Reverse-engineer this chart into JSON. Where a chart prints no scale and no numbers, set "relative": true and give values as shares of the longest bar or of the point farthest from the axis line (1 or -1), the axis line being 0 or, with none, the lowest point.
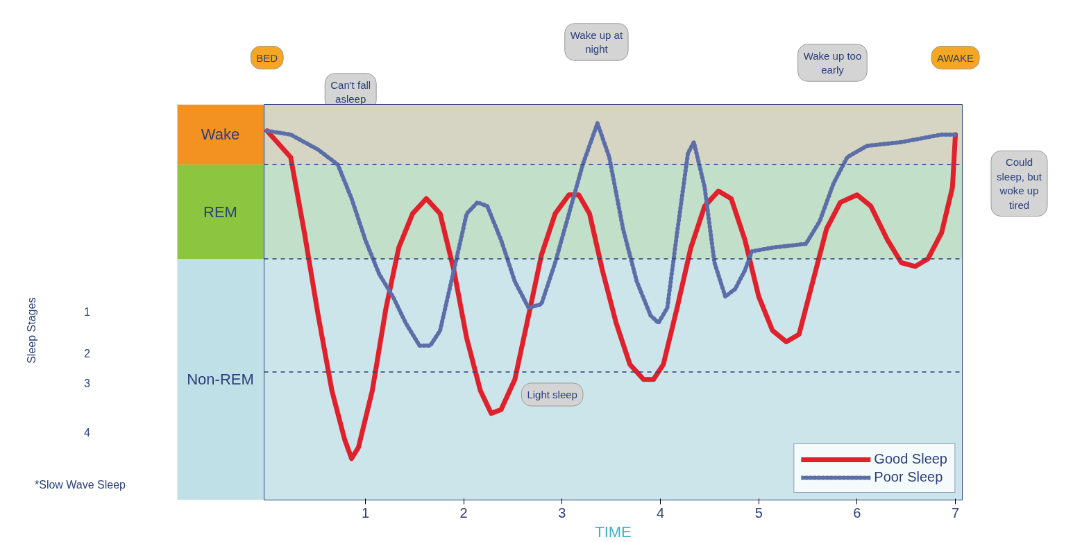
{
  "chart_data": {
    "type": "line",
    "relative": true,
    "xlim": [
      -0.03,
      7.07
    ],
    "xticks": [
      1,
      2,
      3,
      4,
      5,
      6,
      7
    ],
    "xlabel": "TIME",
    "legend": "bottom right",
    "bands": [
      {
        "axis": "y",
        "from": 0.89,
        "to": 1.05,
        "label": "Wake",
        "color": "#f39221"
      },
      {
        "axis": "y",
        "from": 0.64,
        "to": 0.89,
        "label": "REM",
        "color": "#8cc540"
      },
      {
        "axis": "y",
        "from": 0,
        "to": 0.64,
        "label": "Non-REM",
        "color": "#bfe0e6"
      }
    ],
    "ref_lines": [
      {
        "axis": "y",
        "value": 0.89,
        "line_style": "dashed",
        "color": "#2a3f7a"
      },
      {
        "axis": "y",
        "value": 0.64,
        "line_style": "dashed",
        "color": "#2a3f7a"
      },
      {
        "axis": "y",
        "value": 0.34,
        "line_style": "dashed",
        "color": "#2a3f7a"
      }
    ],
    "series": [
      {
        "name": "Good Sleep",
        "color": "#e0202a",
        "line_style": "solid",
        "x": [
          0.0,
          0.24,
          0.38,
          0.52,
          0.66,
          0.79,
          0.86,
          0.93,
          1.07,
          1.21,
          1.34,
          1.48,
          1.62,
          1.76,
          1.9,
          2.03,
          2.17,
          2.28,
          2.38,
          2.52,
          2.66,
          2.79,
          2.93,
          3.07,
          3.17,
          3.28,
          3.41,
          3.55,
          3.69,
          3.83,
          3.93,
          4.03,
          4.17,
          4.31,
          4.45,
          4.59,
          4.72,
          4.86,
          5.0,
          5.14,
          5.28,
          5.41,
          5.55,
          5.69,
          5.83,
          6.0,
          6.14,
          6.31,
          6.45,
          6.59,
          6.72,
          6.86,
          6.97,
          7.0
        ],
        "values": [
          0.98,
          0.91,
          0.71,
          0.49,
          0.29,
          0.16,
          0.11,
          0.14,
          0.29,
          0.51,
          0.67,
          0.76,
          0.8,
          0.76,
          0.61,
          0.43,
          0.29,
          0.23,
          0.24,
          0.32,
          0.49,
          0.65,
          0.76,
          0.81,
          0.81,
          0.76,
          0.61,
          0.47,
          0.36,
          0.32,
          0.32,
          0.36,
          0.51,
          0.67,
          0.78,
          0.82,
          0.8,
          0.69,
          0.54,
          0.45,
          0.42,
          0.44,
          0.58,
          0.72,
          0.79,
          0.81,
          0.78,
          0.69,
          0.63,
          0.62,
          0.64,
          0.71,
          0.83,
          0.97
        ]
      },
      {
        "name": "Poor Sleep",
        "color": "#5b6ea8",
        "line_style": "dotted",
        "x": [
          0.0,
          0.24,
          0.52,
          0.72,
          0.86,
          1.0,
          1.14,
          1.28,
          1.41,
          1.55,
          1.66,
          1.76,
          1.9,
          2.03,
          2.14,
          2.24,
          2.38,
          2.52,
          2.66,
          2.79,
          2.93,
          3.07,
          3.21,
          3.36,
          3.48,
          3.62,
          3.76,
          3.9,
          3.98,
          4.07,
          4.17,
          4.28,
          4.34,
          4.45,
          4.55,
          4.66,
          4.76,
          4.86,
          4.93,
          5.14,
          5.48,
          5.62,
          5.76,
          5.9,
          6.1,
          6.45,
          6.86,
          7.0
        ],
        "values": [
          0.98,
          0.97,
          0.93,
          0.89,
          0.8,
          0.69,
          0.6,
          0.54,
          0.47,
          0.41,
          0.41,
          0.45,
          0.61,
          0.76,
          0.79,
          0.78,
          0.69,
          0.58,
          0.51,
          0.52,
          0.63,
          0.76,
          0.89,
          1.0,
          0.91,
          0.72,
          0.58,
          0.49,
          0.47,
          0.51,
          0.71,
          0.92,
          0.95,
          0.83,
          0.63,
          0.54,
          0.56,
          0.61,
          0.66,
          0.67,
          0.68,
          0.74,
          0.84,
          0.91,
          0.94,
          0.95,
          0.97,
          0.97
        ]
      }
    ],
    "annotations": [
      "BED",
      "Can't fall asleep",
      "Wake up at night",
      "Light sleep",
      "Wake up too early",
      "AWAKE",
      "Could sleep, but woke up tired",
      "Sleep Stages",
      "1",
      "2",
      "3",
      "4",
      "*Slow Wave Sleep"
    ]
  }
}
